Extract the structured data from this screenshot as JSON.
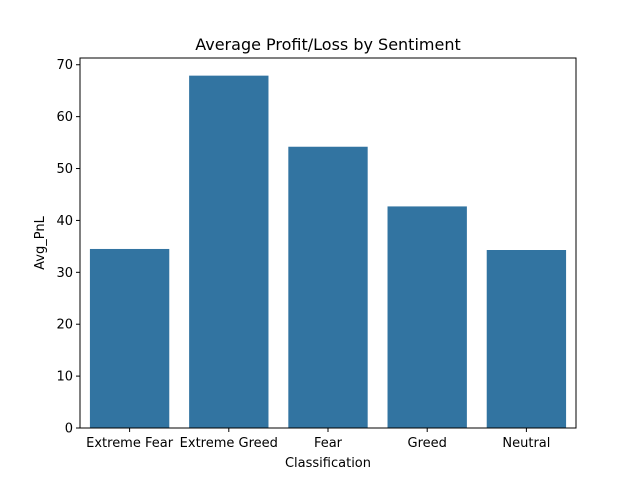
{
  "chart_data": {
    "type": "bar",
    "title": "Average Profit/Loss by Sentiment",
    "xlabel": "Classification",
    "ylabel": "Avg_PnL",
    "categories": [
      "Extreme Fear",
      "Extreme Greed",
      "Fear",
      "Greed",
      "Neutral"
    ],
    "values": [
      34.5,
      67.9,
      54.2,
      42.7,
      34.3
    ],
    "ylim": [
      0,
      71.3
    ],
    "yticks": [
      0,
      10,
      20,
      30,
      40,
      50,
      60,
      70
    ],
    "bar_color": "#3274a1",
    "grid": false,
    "legend": "none"
  }
}
